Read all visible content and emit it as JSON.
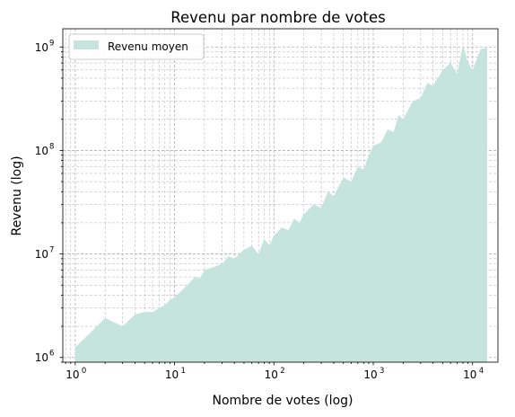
{
  "chart_data": {
    "type": "area",
    "title": "Revenu par nombre de votes",
    "xlabel": "Nombre de votes (log)",
    "ylabel": "Revenu (log)",
    "xscale": "log",
    "yscale": "log",
    "xlim": [
      0.75,
      18000
    ],
    "ylim": [
      900000,
      1500000000
    ],
    "grid": true,
    "legend_position": "top-left",
    "x_tick_labels": [
      {
        "base": "10",
        "exp": "0",
        "value": 1
      },
      {
        "base": "10",
        "exp": "1",
        "value": 10
      },
      {
        "base": "10",
        "exp": "2",
        "value": 100
      },
      {
        "base": "10",
        "exp": "3",
        "value": 1000
      },
      {
        "base": "10",
        "exp": "4",
        "value": 10000
      }
    ],
    "y_tick_labels": [
      {
        "base": "10",
        "exp": "6",
        "value": 1000000
      },
      {
        "base": "10",
        "exp": "7",
        "value": 10000000
      },
      {
        "base": "10",
        "exp": "8",
        "value": 100000000
      },
      {
        "base": "10",
        "exp": "9",
        "value": 1000000000
      }
    ],
    "series": [
      {
        "name": "Revenu moyen",
        "color": "#c4e4dc",
        "x": [
          1,
          2,
          3,
          4,
          5,
          6,
          7,
          8,
          9,
          10,
          12,
          14,
          16,
          18,
          20,
          25,
          30,
          35,
          40,
          50,
          60,
          70,
          80,
          90,
          100,
          120,
          140,
          160,
          180,
          200,
          250,
          300,
          350,
          400,
          500,
          600,
          700,
          800,
          900,
          1000,
          1200,
          1400,
          1600,
          1800,
          2000,
          2500,
          3000,
          3500,
          4000,
          5000,
          6000,
          7000,
          8000,
          9000,
          10000,
          12000,
          14000
        ],
        "y": [
          1250000,
          2400000,
          2000000,
          2600000,
          2750000,
          2750000,
          3000000,
          3200000,
          3600000,
          3800000,
          4500000,
          5200000,
          6000000,
          5800000,
          7000000,
          7500000,
          8000000,
          9500000,
          9000000,
          11000000,
          12000000,
          10000000,
          14000000,
          12000000,
          15000000,
          18000000,
          17000000,
          22000000,
          20000000,
          24000000,
          30000000,
          28000000,
          40000000,
          36000000,
          55000000,
          50000000,
          70000000,
          65000000,
          90000000,
          110000000,
          120000000,
          160000000,
          150000000,
          220000000,
          200000000,
          300000000,
          320000000,
          450000000,
          420000000,
          600000000,
          700000000,
          550000000,
          1050000000,
          700000000,
          600000000,
          950000000,
          980000000
        ]
      }
    ]
  }
}
